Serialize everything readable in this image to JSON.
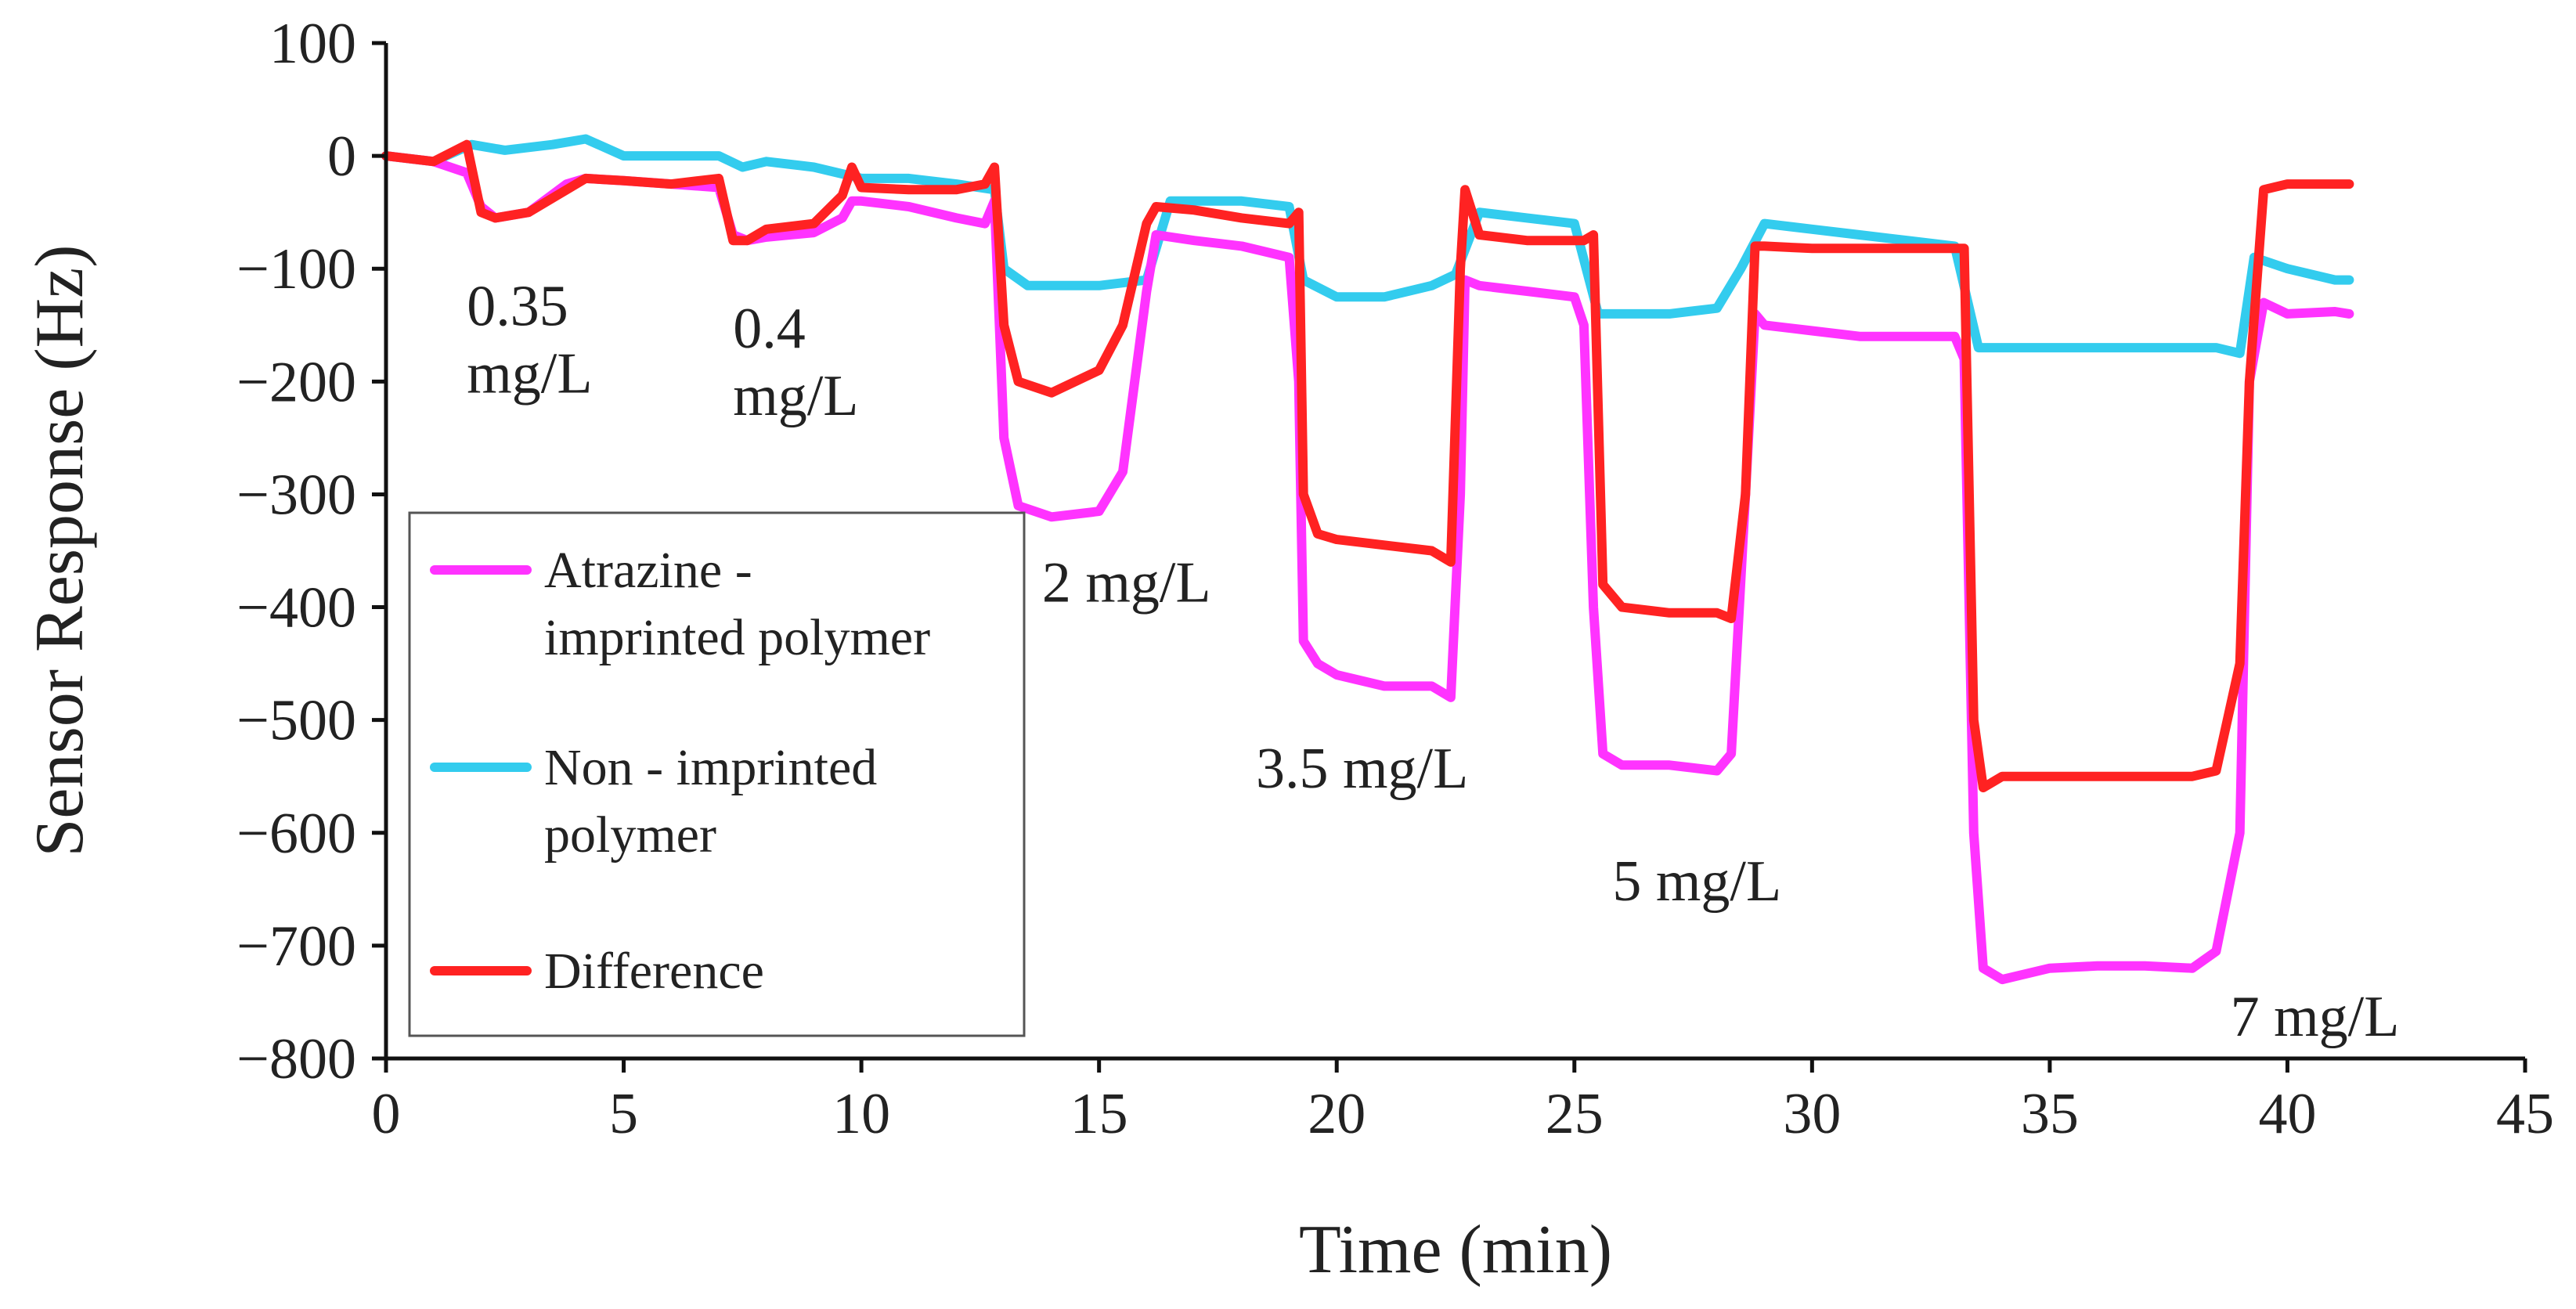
{
  "chart_data": {
    "type": "line",
    "title": "",
    "xlabel": "Time (min)",
    "ylabel": "Sensor Response (Hz)",
    "xlim": [
      0,
      45
    ],
    "ylim": [
      -800,
      100
    ],
    "xticks": [
      0,
      5,
      10,
      15,
      20,
      25,
      30,
      35,
      40,
      45
    ],
    "yticks": [
      100,
      0,
      -100,
      -200,
      -300,
      -400,
      -500,
      -600,
      -700,
      -800
    ],
    "xtick_labels": [
      "0",
      "5",
      "10",
      "15",
      "20",
      "25",
      "30",
      "35",
      "40",
      "45"
    ],
    "ytick_labels": [
      "100",
      "0",
      "−100",
      "−200",
      "−300",
      "−400",
      "−500",
      "−600",
      "−700",
      "−800"
    ],
    "grid": false,
    "legend_position": "left-middle",
    "series": [
      {
        "name": "Atrazine - imprinted polymer",
        "legend_lines": [
          "Atrazine -",
          "imprinted polymer"
        ],
        "color": "#ff33ff",
        "x": [
          0,
          1,
          1.7,
          2.0,
          2.3,
          3,
          3.8,
          4.2,
          5,
          6,
          7,
          7.3,
          7.6,
          8,
          9,
          9.6,
          9.8,
          10,
          11,
          12,
          12.6,
          12.8,
          13.0,
          13.3,
          14,
          15,
          15.5,
          16,
          16.2,
          17,
          18,
          19,
          19.2,
          19.3,
          19.6,
          20,
          21,
          22,
          22.4,
          22.6,
          22.7,
          23,
          24,
          25,
          25.2,
          25.4,
          25.6,
          26,
          27,
          28,
          28.3,
          28.6,
          28.8,
          29,
          30,
          31,
          32,
          33,
          33.2,
          33.4,
          33.6,
          34,
          35,
          36,
          37,
          38,
          38.5,
          39,
          39.2,
          39.5,
          40,
          41,
          41.3
        ],
        "y": [
          0,
          -5,
          -15,
          -45,
          -55,
          -50,
          -25,
          -20,
          -22,
          -25,
          -28,
          -70,
          -75,
          -72,
          -68,
          -55,
          -40,
          -40,
          -45,
          -55,
          -60,
          -40,
          -250,
          -310,
          -320,
          -315,
          -280,
          -120,
          -70,
          -75,
          -80,
          -90,
          -200,
          -430,
          -450,
          -460,
          -470,
          -470,
          -480,
          -300,
          -110,
          -115,
          -120,
          -125,
          -150,
          -400,
          -530,
          -540,
          -540,
          -545,
          -530,
          -300,
          -140,
          -150,
          -155,
          -160,
          -160,
          -160,
          -180,
          -600,
          -720,
          -730,
          -720,
          -718,
          -718,
          -720,
          -705,
          -600,
          -200,
          -130,
          -140,
          -138,
          -140
        ]
      },
      {
        "name": "Non - imprinted polymer",
        "legend_lines": [
          "Non - imprinted",
          "polymer"
        ],
        "color": "#33ccee",
        "x": [
          0,
          1,
          1.8,
          2.5,
          3.5,
          4.2,
          5,
          6,
          7,
          7.5,
          8,
          9,
          10,
          11,
          12,
          12.8,
          13.0,
          13.5,
          15,
          16,
          16.5,
          18,
          19,
          19.3,
          20,
          21,
          22,
          22.5,
          23,
          24,
          25,
          25.5,
          26,
          27,
          28,
          28.5,
          29,
          30,
          31,
          32,
          33,
          33.5,
          35,
          37,
          38.5,
          39,
          39.3,
          40,
          41,
          41.3
        ],
        "y": [
          0,
          -5,
          10,
          5,
          10,
          15,
          0,
          0,
          0,
          -10,
          -5,
          -10,
          -20,
          -20,
          -25,
          -30,
          -100,
          -115,
          -115,
          -110,
          -40,
          -40,
          -45,
          -110,
          -125,
          -125,
          -115,
          -105,
          -50,
          -55,
          -60,
          -140,
          -140,
          -140,
          -135,
          -100,
          -60,
          -65,
          -70,
          -75,
          -80,
          -170,
          -170,
          -170,
          -170,
          -175,
          -90,
          -100,
          -110,
          -110
        ]
      },
      {
        "name": "Difference",
        "legend_lines": [
          "Difference"
        ],
        "color": "#ff2222",
        "x": [
          0,
          1,
          1.7,
          2.0,
          2.3,
          3,
          3.8,
          4.2,
          5,
          6,
          7,
          7.3,
          7.6,
          8,
          9,
          9.6,
          9.8,
          10,
          11,
          12,
          12.6,
          12.8,
          13.0,
          13.3,
          14,
          15,
          15.5,
          16,
          16.2,
          17,
          18,
          19,
          19.2,
          19.3,
          19.6,
          20,
          21,
          22,
          22.4,
          22.6,
          22.7,
          23,
          24,
          25,
          25.2,
          25.4,
          25.6,
          26,
          27,
          28,
          28.3,
          28.6,
          28.8,
          29,
          30,
          31,
          32,
          33,
          33.2,
          33.4,
          33.6,
          34,
          35,
          36,
          37,
          38,
          38.5,
          39,
          39.2,
          39.5,
          40,
          41,
          41.3
        ],
        "y": [
          0,
          -5,
          10,
          -50,
          -55,
          -50,
          -30,
          -20,
          -22,
          -25,
          -20,
          -75,
          -75,
          -65,
          -60,
          -35,
          -10,
          -28,
          -30,
          -30,
          -25,
          -10,
          -150,
          -200,
          -210,
          -190,
          -150,
          -60,
          -45,
          -48,
          -55,
          -60,
          -50,
          -300,
          -335,
          -340,
          -345,
          -350,
          -360,
          -100,
          -30,
          -70,
          -75,
          -75,
          -75,
          -70,
          -380,
          -400,
          -405,
          -405,
          -410,
          -300,
          -80,
          -80,
          -82,
          -82,
          -82,
          -82,
          -82,
          -500,
          -560,
          -550,
          -550,
          -550,
          -550,
          -550,
          -545,
          -450,
          -200,
          -30,
          -25,
          -25,
          -25
        ]
      }
    ],
    "annotations": [
      {
        "lines": [
          "0.35",
          "mg/L"
        ],
        "x": 1.7,
        "y": -150
      },
      {
        "lines": [
          "0.4",
          "mg/L"
        ],
        "x": 7.3,
        "y": -170
      },
      {
        "lines": [
          "2 mg/L"
        ],
        "x": 13.8,
        "y": -395
      },
      {
        "lines": [
          "3.5 mg/L"
        ],
        "x": 18.3,
        "y": -560
      },
      {
        "lines": [
          "5 mg/L"
        ],
        "x": 25.8,
        "y": -660
      },
      {
        "lines": [
          "7 mg/L"
        ],
        "x": 38.8,
        "y": -780
      }
    ]
  }
}
